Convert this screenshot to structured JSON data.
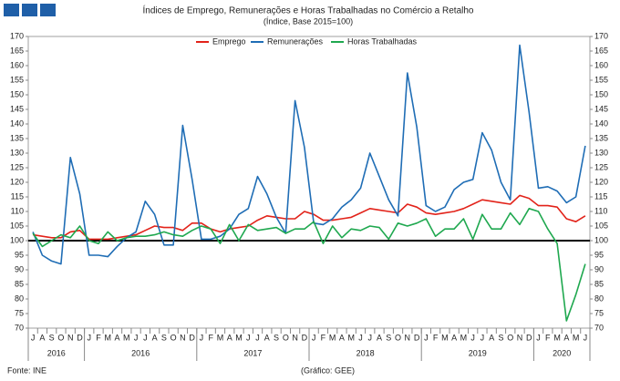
{
  "chart_data": {
    "type": "line",
    "title": "Índices de Emprego, Remunerações e Horas Trabalhadas no Comércio a Retalho",
    "subtitle": "(Índice, Base 2015=100)",
    "source": "Fonte: INE",
    "credit": "(Gráfico: GEE)",
    "categories": [
      "J",
      "A",
      "S",
      "O",
      "N",
      "D",
      "J",
      "F",
      "M",
      "A",
      "M",
      "J",
      "J",
      "A",
      "S",
      "O",
      "N",
      "D",
      "J",
      "F",
      "M",
      "A",
      "M",
      "J",
      "J",
      "A",
      "S",
      "O",
      "N",
      "D",
      "J",
      "F",
      "M",
      "A",
      "M",
      "J",
      "J",
      "A",
      "S",
      "O",
      "N",
      "D",
      "J",
      "F",
      "M",
      "A",
      "M",
      "J",
      "J",
      "A",
      "S",
      "O",
      "N",
      "D",
      "J",
      "F",
      "M",
      "A",
      "M",
      "J"
    ],
    "years": [
      "2016",
      "2016",
      "2017",
      "2018",
      "2019",
      "2020"
    ],
    "year_spans": [
      6,
      12,
      12,
      12,
      12,
      6
    ],
    "series": [
      {
        "name": "Emprego",
        "color": "#e2231a",
        "values": [
          102,
          101.5,
          101,
          101,
          103,
          103.5,
          100.5,
          100.5,
          100.5,
          101,
          101.5,
          102,
          103.5,
          105,
          104.5,
          104.5,
          103.5,
          106,
          106,
          104,
          103,
          104,
          104.5,
          105,
          107,
          108.5,
          108,
          107.5,
          107.5,
          110,
          109,
          107,
          107,
          107.5,
          108,
          109.5,
          111,
          110.5,
          110,
          109.5,
          112.5,
          111.5,
          109.5,
          109,
          109.5,
          110,
          111,
          112.5,
          114,
          113.5,
          113,
          112.5,
          115.5,
          114.5,
          112,
          112,
          111.5,
          107.5,
          106.5,
          108.5
        ]
      },
      {
        "name": "Remunerações",
        "color": "#1f6db5",
        "values": [
          103,
          95,
          93,
          92,
          128.5,
          116,
          95,
          95,
          94.5,
          98,
          101,
          103,
          113.5,
          109,
          98.5,
          98.5,
          139.5,
          121,
          100.5,
          100.5,
          101.5,
          104,
          109,
          111,
          122,
          116,
          108,
          102.5,
          148,
          132,
          106,
          105.5,
          107.5,
          111.5,
          114,
          118,
          130,
          122,
          114,
          108.5,
          157.5,
          139,
          112,
          110,
          111.5,
          117.5,
          120,
          121,
          137,
          131,
          120,
          114,
          167,
          144,
          118,
          118.5,
          117,
          113,
          115,
          132.5
        ]
      },
      {
        "name": "Horas Trabalhadas",
        "color": "#1fa84f",
        "values": [
          102.5,
          98,
          100,
          102,
          101,
          105,
          100,
          99,
          103,
          100,
          101,
          101.5,
          101.5,
          102,
          103,
          102,
          101.5,
          103.5,
          105,
          104,
          99,
          105.5,
          100,
          105.5,
          103.5,
          104,
          104.5,
          102.5,
          104,
          104,
          106.5,
          99,
          105,
          101,
          104,
          103.5,
          105,
          104.5,
          100.5,
          106,
          105,
          106,
          107.5,
          101.5,
          104,
          104,
          107.5,
          100.5,
          109,
          104,
          104,
          109.5,
          105.5,
          111,
          110,
          104,
          99,
          72.5,
          81.5,
          92
        ]
      }
    ],
    "ylim": [
      70,
      170
    ],
    "yticks": [
      70,
      75,
      80,
      85,
      90,
      95,
      100,
      105,
      110,
      115,
      120,
      125,
      130,
      135,
      140,
      145,
      150,
      155,
      160,
      165,
      170
    ],
    "y2lim": [
      70,
      170
    ],
    "y2ticks": [
      70,
      75,
      80,
      85,
      90,
      95,
      100,
      105,
      110,
      115,
      120,
      125,
      130,
      135,
      140,
      145,
      150,
      155,
      160,
      165,
      170
    ],
    "reference_line": 100,
    "legend": "top"
  }
}
